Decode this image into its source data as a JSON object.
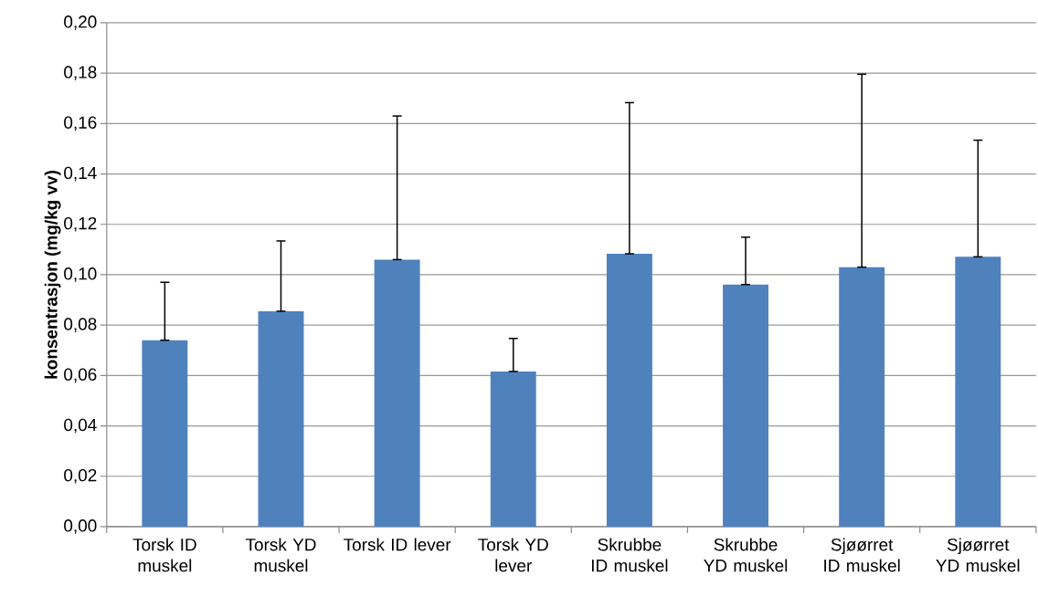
{
  "chart_data": {
    "type": "bar",
    "ylabel": "konsentrasjon (mg/kg vv)",
    "categories": [
      "Torsk ID muskel",
      "Torsk YD muskel",
      "Torsk ID lever",
      "Torsk YD lever",
      "Skrubbe ID muskel",
      "Skrubbe YD muskel",
      "Sjøørret ID muskel",
      "Sjøørret YD muskel"
    ],
    "values": [
      0.074,
      0.0855,
      0.106,
      0.0616,
      0.1083,
      0.0961,
      0.103,
      0.1071
    ],
    "errors": [
      [
        0.074,
        0.097
      ],
      [
        0.0855,
        0.1134
      ],
      [
        0.106,
        0.163
      ],
      [
        0.0616,
        0.0747
      ],
      [
        0.1083,
        0.1683
      ],
      [
        0.0961,
        0.1149
      ],
      [
        0.103,
        0.1796
      ],
      [
        0.1071,
        0.1534
      ]
    ],
    "color": "#4f81bd",
    "ylim": [
      0,
      0.2
    ],
    "yticks": [
      {
        "value": 0,
        "label": "0,00"
      },
      {
        "value": 0.02,
        "label": "0,02"
      },
      {
        "value": 0.04,
        "label": "0,04"
      },
      {
        "value": 0.06,
        "label": "0,06"
      },
      {
        "value": 0.08,
        "label": "0,08"
      },
      {
        "value": 0.1,
        "label": "0,10"
      },
      {
        "value": 0.12,
        "label": "0,12"
      },
      {
        "value": 0.14,
        "label": "0,14"
      },
      {
        "value": 0.16,
        "label": "0,16"
      },
      {
        "value": 0.18,
        "label": "0,18"
      },
      {
        "value": 0.2,
        "label": "0,20"
      }
    ],
    "grid": "y"
  }
}
